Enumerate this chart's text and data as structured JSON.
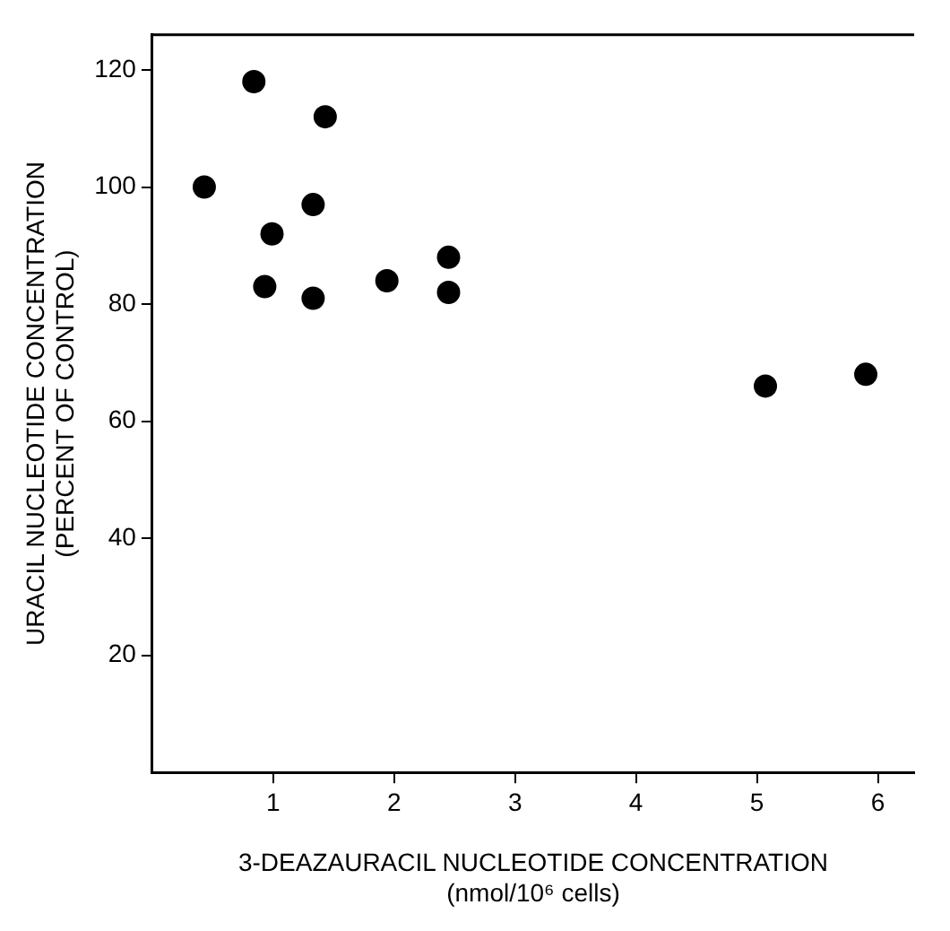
{
  "chart_data": {
    "type": "scatter",
    "xlabel": "3-DEAZAURACIL NUCLEOTIDE CONCENTRATION\n(nmol/10⁶ cells)",
    "ylabel": "URACIL NUCLEOTIDE CONCENTRATION\n(PERCENT OF CONTROL)",
    "marker": "circle",
    "grid": false,
    "legend": false,
    "series": [
      {
        "color": "#000000",
        "x": [
          0.43,
          0.84,
          1.43,
          1.33,
          0.99,
          0.93,
          1.33,
          1.94,
          2.45,
          2.45,
          5.07,
          5.9
        ],
        "values": [
          100,
          118,
          112,
          97,
          92,
          83,
          81,
          84,
          88,
          82,
          66,
          68
        ]
      }
    ],
    "xlim": [
      0,
      6.3
    ],
    "xticks": [
      1,
      2,
      3,
      4,
      5,
      6
    ],
    "ylim": [
      0,
      126
    ],
    "yticks": [
      20,
      40,
      60,
      80,
      100,
      120
    ]
  }
}
